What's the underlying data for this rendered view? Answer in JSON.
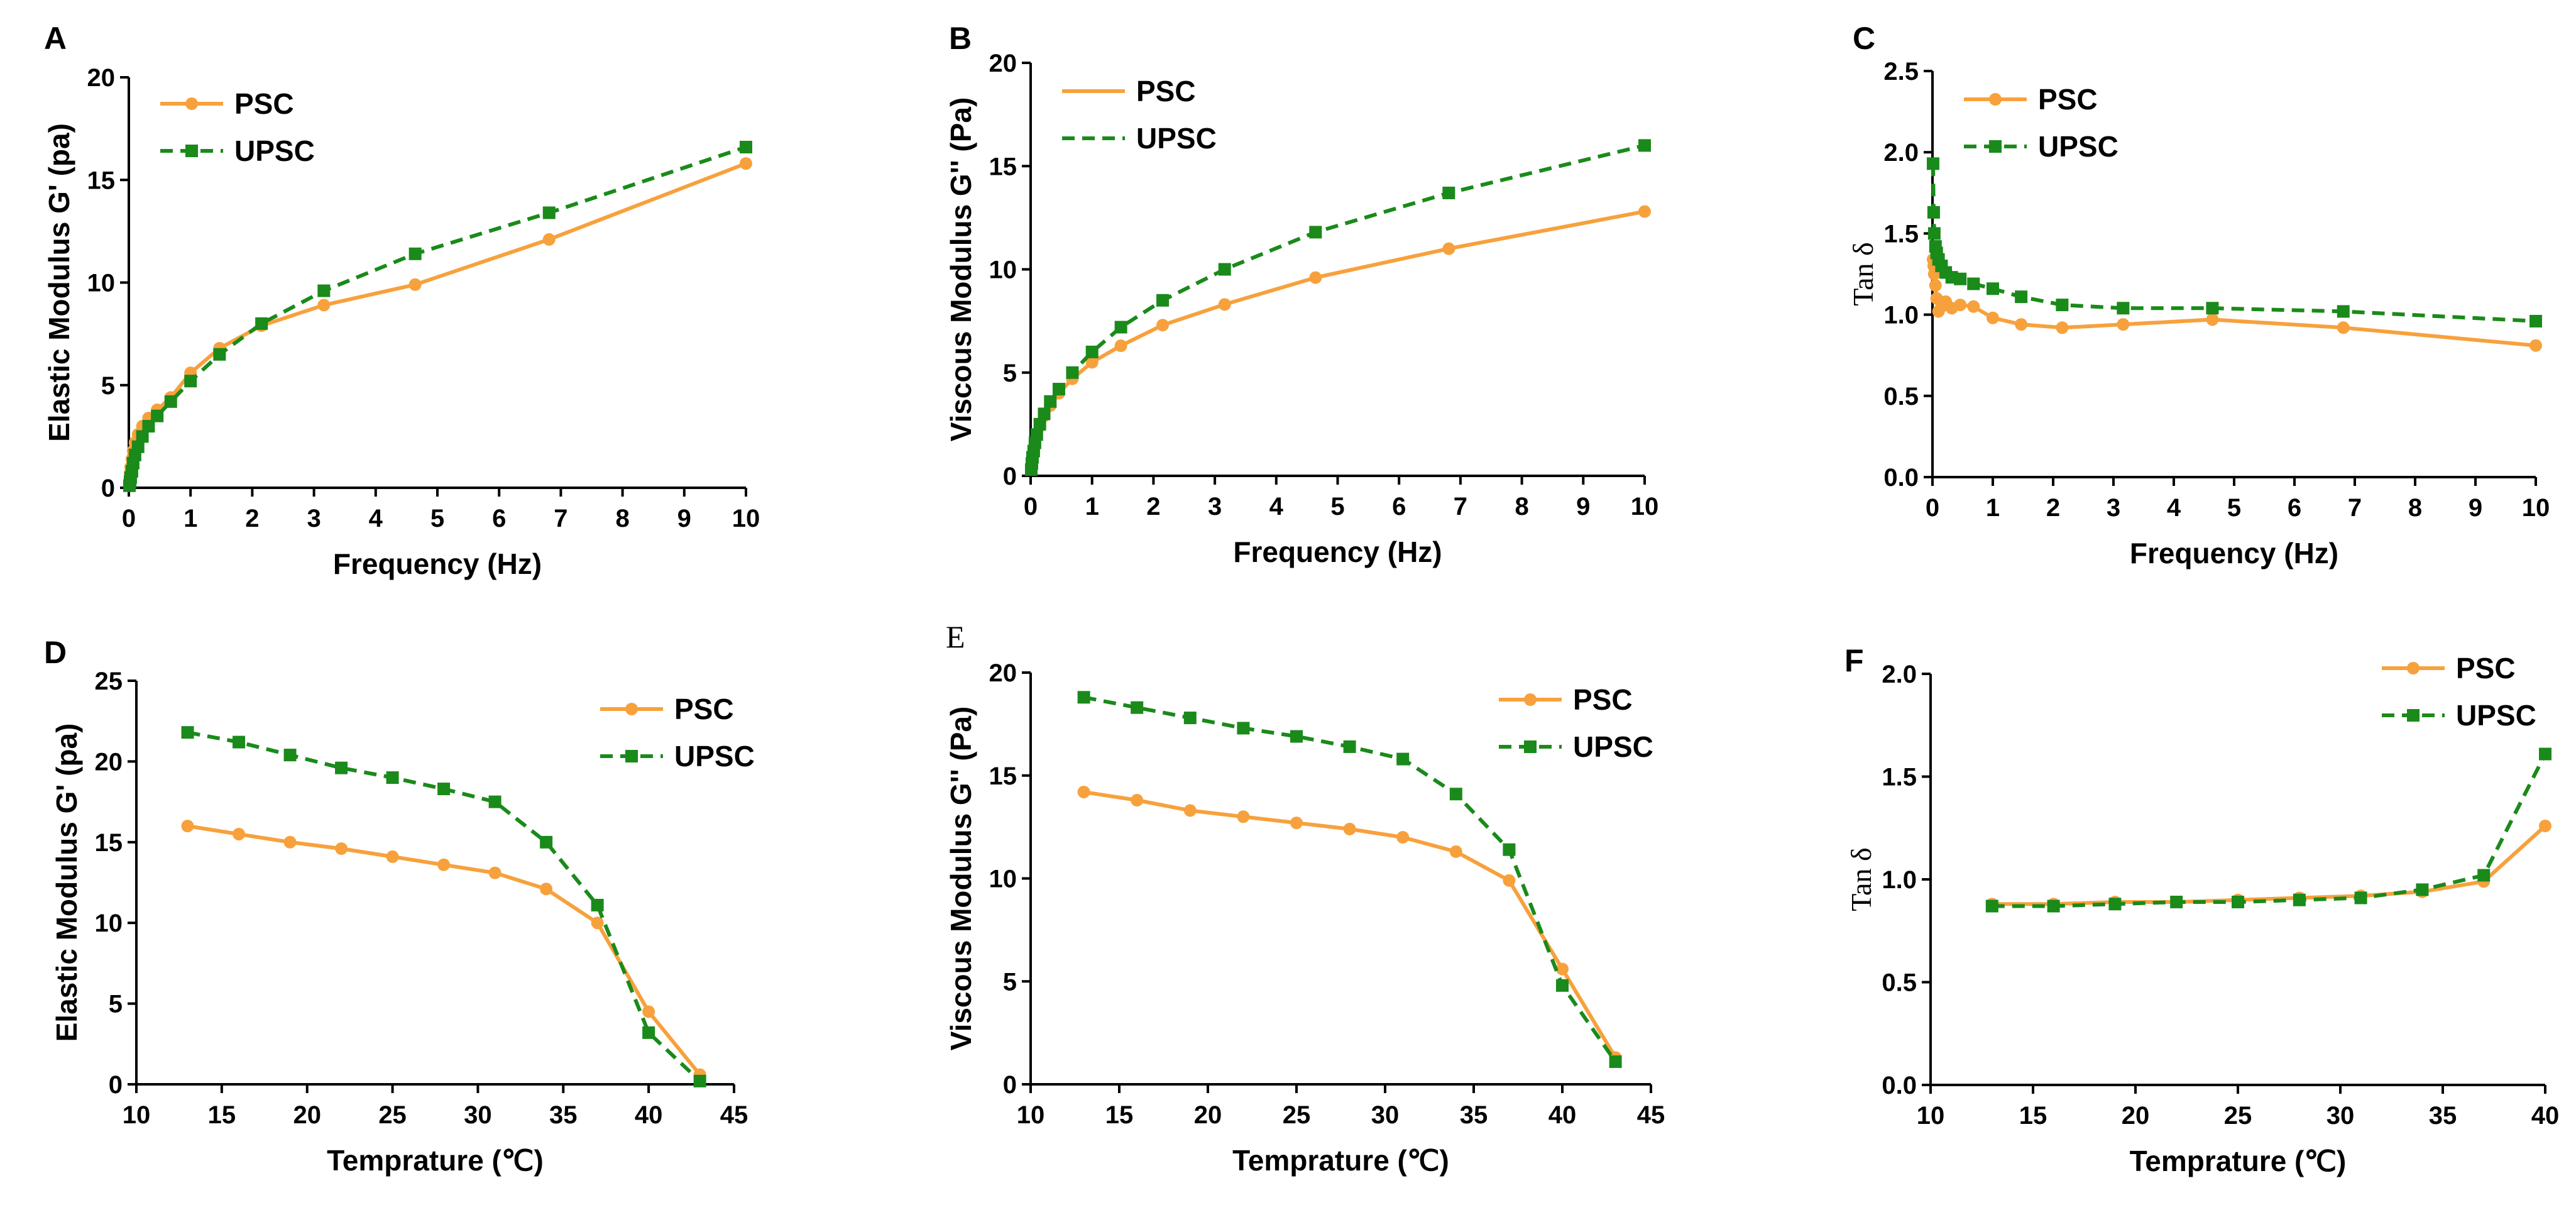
{
  "colors": {
    "psc": "#F7A13D",
    "upsc": "#1A8A1A",
    "axis": "#000000"
  },
  "chart_data": [
    {
      "panel": "A",
      "type": "line",
      "xlabel": "Frequency (Hz)",
      "ylabel": "Elastic Modulus G' (pa)",
      "xlim": [
        0,
        10
      ],
      "ylim": [
        0,
        20
      ],
      "xticks": [
        0,
        1,
        2,
        3,
        4,
        5,
        6,
        7,
        8,
        9,
        10
      ],
      "yticks": [
        0,
        5,
        10,
        15,
        20
      ],
      "legend_position": "top-left",
      "series": [
        {
          "name": "PSC",
          "style": "solid-circle",
          "x": [
            0.01,
            0.02,
            0.03,
            0.05,
            0.07,
            0.1,
            0.15,
            0.22,
            0.32,
            0.46,
            0.68,
            1.0,
            1.47,
            2.15,
            3.16,
            4.64,
            6.81,
            10.0
          ],
          "y": [
            0.3,
            0.7,
            1.0,
            1.4,
            1.8,
            2.2,
            2.6,
            3.0,
            3.4,
            3.8,
            4.4,
            5.6,
            6.8,
            7.9,
            8.9,
            9.9,
            12.1,
            15.8
          ]
        },
        {
          "name": "UPSC",
          "style": "dashed-square",
          "x": [
            0.01,
            0.02,
            0.03,
            0.05,
            0.07,
            0.1,
            0.15,
            0.22,
            0.32,
            0.46,
            0.68,
            1.0,
            1.47,
            2.15,
            3.16,
            4.64,
            6.81,
            10.0
          ],
          "y": [
            0.1,
            0.3,
            0.5,
            0.8,
            1.2,
            1.6,
            2.0,
            2.5,
            3.0,
            3.5,
            4.2,
            5.2,
            6.5,
            8.0,
            9.6,
            11.4,
            13.4,
            16.6
          ]
        }
      ]
    },
    {
      "panel": "B",
      "type": "line",
      "xlabel": "Frequency (Hz)",
      "ylabel": "Viscous Modulus G'' (Pa)",
      "xlim": [
        0,
        10
      ],
      "ylim": [
        0,
        20
      ],
      "xticks": [
        0,
        1,
        2,
        3,
        4,
        5,
        6,
        7,
        8,
        9,
        10
      ],
      "yticks": [
        0,
        5,
        10,
        15,
        20
      ],
      "legend_position": "top-left",
      "legend_style": "line-only",
      "series": [
        {
          "name": "PSC",
          "style": "solid-circle",
          "x": [
            0.01,
            0.02,
            0.03,
            0.05,
            0.07,
            0.1,
            0.15,
            0.22,
            0.32,
            0.46,
            0.68,
            1.0,
            1.47,
            2.15,
            3.16,
            4.64,
            6.81,
            10.0
          ],
          "y": [
            0.4,
            0.7,
            1.0,
            1.3,
            1.6,
            2.0,
            2.4,
            2.9,
            3.4,
            4.0,
            4.7,
            5.5,
            6.3,
            7.3,
            8.3,
            9.6,
            11.0,
            12.8
          ]
        },
        {
          "name": "UPSC",
          "style": "dashed-square",
          "x": [
            0.01,
            0.02,
            0.03,
            0.05,
            0.07,
            0.1,
            0.15,
            0.22,
            0.32,
            0.46,
            0.68,
            1.0,
            1.47,
            2.15,
            3.16,
            4.64,
            6.81,
            10.0
          ],
          "y": [
            0.3,
            0.6,
            0.9,
            1.2,
            1.6,
            2.0,
            2.5,
            3.0,
            3.6,
            4.2,
            5.0,
            6.0,
            7.2,
            8.5,
            10.0,
            11.8,
            13.7,
            16.0
          ]
        }
      ]
    },
    {
      "panel": "C",
      "type": "line",
      "xlabel": "Frequency (Hz)",
      "ylabel": "Tan δ",
      "xlim": [
        0,
        10
      ],
      "ylim": [
        0,
        2.5
      ],
      "xticks": [
        0,
        1,
        2,
        3,
        4,
        5,
        6,
        7,
        8,
        9,
        10
      ],
      "yticks": [
        0.0,
        0.5,
        1.0,
        1.5,
        2.0,
        2.5
      ],
      "ytick_labels": [
        "0.0",
        "0.5",
        "1.0",
        "1.5",
        "2.0",
        "2.5"
      ],
      "legend_position": "top-left",
      "series": [
        {
          "name": "PSC",
          "style": "solid-circle",
          "x": [
            0.01,
            0.02,
            0.03,
            0.05,
            0.07,
            0.1,
            0.15,
            0.22,
            0.32,
            0.46,
            0.68,
            1.0,
            1.47,
            2.15,
            3.16,
            4.64,
            6.81,
            10.0
          ],
          "y": [
            1.34,
            1.3,
            1.25,
            1.18,
            1.1,
            1.02,
            1.05,
            1.08,
            1.04,
            1.06,
            1.05,
            0.98,
            0.94,
            0.92,
            0.94,
            0.97,
            0.92,
            0.81
          ]
        },
        {
          "name": "UPSC",
          "style": "dashed-square",
          "x": [
            0.01,
            0.02,
            0.03,
            0.05,
            0.07,
            0.1,
            0.15,
            0.22,
            0.32,
            0.46,
            0.68,
            1.0,
            1.47,
            2.15,
            3.16,
            4.64,
            6.81,
            10.0
          ],
          "y": [
            1.93,
            1.63,
            1.5,
            1.42,
            1.38,
            1.34,
            1.3,
            1.26,
            1.23,
            1.22,
            1.19,
            1.16,
            1.11,
            1.06,
            1.04,
            1.04,
            1.02,
            0.96
          ]
        }
      ]
    },
    {
      "panel": "D",
      "type": "line",
      "xlabel": "Temprature (℃)",
      "ylabel": "Elastic Modulus G' (pa)",
      "xlim": [
        10,
        45
      ],
      "ylim": [
        0,
        25
      ],
      "xticks": [
        10,
        15,
        20,
        25,
        30,
        35,
        40,
        45
      ],
      "yticks": [
        0,
        5,
        10,
        15,
        20,
        25
      ],
      "legend_position": "top-right",
      "series": [
        {
          "name": "PSC",
          "style": "solid-circle",
          "x": [
            13,
            16,
            19,
            22,
            25,
            28,
            31,
            34,
            37,
            40,
            43
          ],
          "y": [
            16.0,
            15.5,
            15.0,
            14.6,
            14.1,
            13.6,
            13.1,
            12.1,
            10.0,
            4.5,
            0.6
          ]
        },
        {
          "name": "UPSC",
          "style": "dashed-square",
          "x": [
            13,
            16,
            19,
            22,
            25,
            28,
            31,
            34,
            37,
            40,
            43
          ],
          "y": [
            21.8,
            21.2,
            20.4,
            19.6,
            19.0,
            18.3,
            17.5,
            15.0,
            11.1,
            3.2,
            0.2
          ]
        }
      ]
    },
    {
      "panel": "E",
      "type": "line",
      "xlabel": "Temprature (℃)",
      "ylabel": "Viscous Modulus G'' (Pa)",
      "xlim": [
        10,
        45
      ],
      "ylim": [
        0,
        20
      ],
      "xticks": [
        10,
        15,
        20,
        25,
        30,
        35,
        40,
        45
      ],
      "yticks": [
        0,
        5,
        10,
        15,
        20
      ],
      "legend_position": "top-right",
      "series": [
        {
          "name": "PSC",
          "style": "solid-circle",
          "x": [
            13,
            16,
            19,
            22,
            25,
            28,
            31,
            34,
            37,
            40,
            43
          ],
          "y": [
            14.2,
            13.8,
            13.3,
            13.0,
            12.7,
            12.4,
            12.0,
            11.3,
            9.9,
            5.6,
            1.3
          ]
        },
        {
          "name": "UPSC",
          "style": "dashed-square",
          "x": [
            13,
            16,
            19,
            22,
            25,
            28,
            31,
            34,
            37,
            40,
            43
          ],
          "y": [
            18.8,
            18.3,
            17.8,
            17.3,
            16.9,
            16.4,
            15.8,
            14.1,
            11.4,
            4.8,
            1.1
          ]
        }
      ]
    },
    {
      "panel": "F",
      "type": "line",
      "xlabel": "Temprature (℃)",
      "ylabel": "Tan δ",
      "xlim": [
        10,
        40
      ],
      "ylim": [
        0,
        2
      ],
      "xticks": [
        10,
        15,
        20,
        25,
        30,
        35,
        40
      ],
      "yticks": [
        0.0,
        0.5,
        1.0,
        1.5,
        2.0
      ],
      "ytick_labels": [
        "0.0",
        "0.5",
        "1.0",
        "1.5",
        "2.0"
      ],
      "legend_position": "top-right",
      "series": [
        {
          "name": "PSC",
          "style": "solid-circle",
          "x": [
            13,
            16,
            19,
            22,
            25,
            28,
            31,
            34,
            37,
            40
          ],
          "y": [
            0.88,
            0.88,
            0.89,
            0.89,
            0.9,
            0.91,
            0.92,
            0.94,
            0.99,
            1.26
          ]
        },
        {
          "name": "UPSC",
          "style": "dashed-square",
          "x": [
            13,
            16,
            19,
            22,
            25,
            28,
            31,
            34,
            37,
            40
          ],
          "y": [
            0.87,
            0.87,
            0.88,
            0.89,
            0.89,
            0.9,
            0.91,
            0.95,
            1.02,
            1.61
          ]
        }
      ]
    }
  ]
}
